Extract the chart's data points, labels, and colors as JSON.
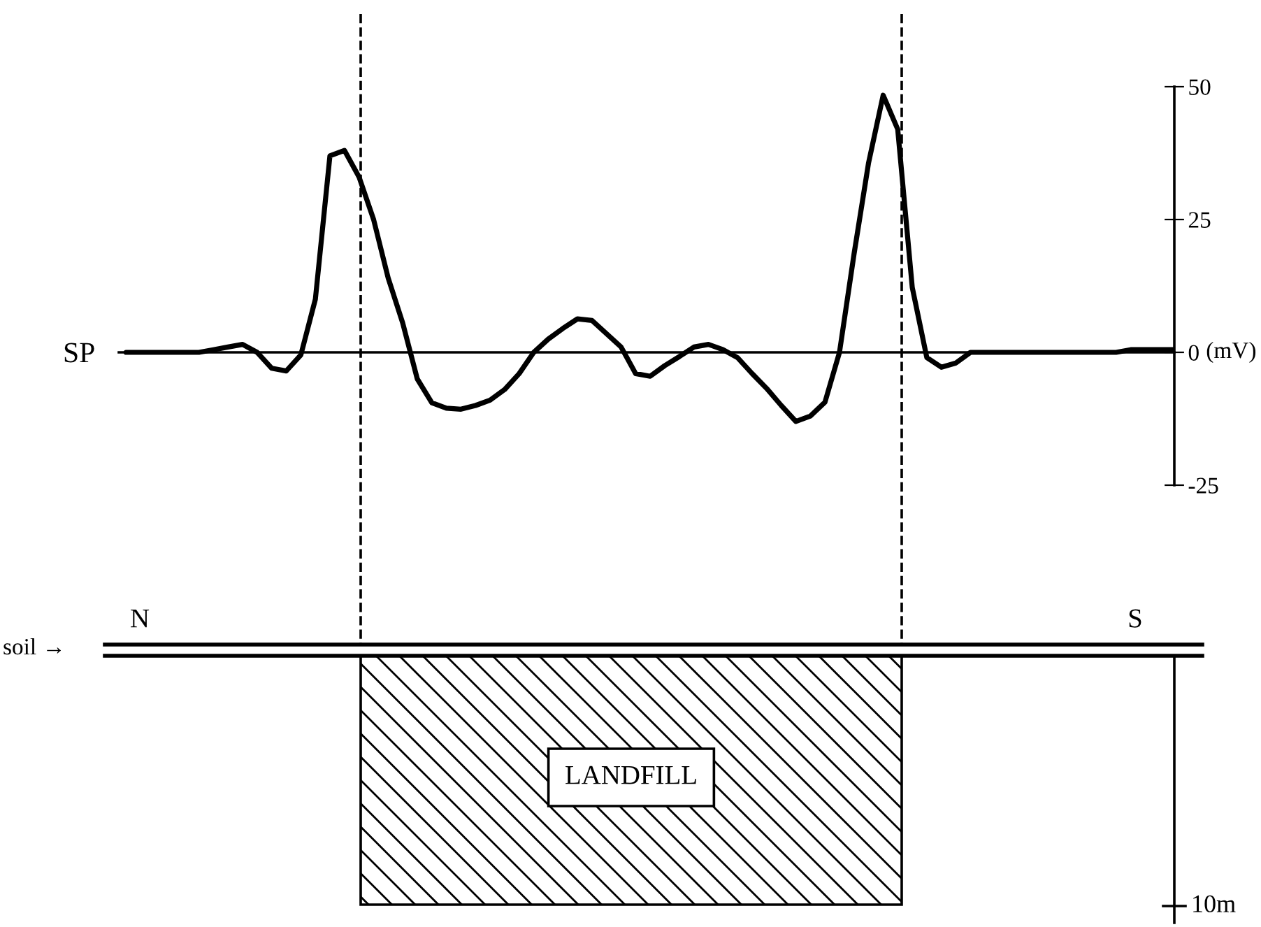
{
  "chart_data": {
    "type": "line",
    "categories": [
      null,
      null,
      null,
      null,
      null,
      null,
      null,
      null,
      null,
      null,
      null,
      null,
      null,
      null,
      null,
      null,
      null,
      null,
      null,
      null,
      null,
      null,
      null,
      null,
      null,
      null,
      null,
      null,
      null,
      null,
      null,
      null,
      null,
      null,
      null,
      null,
      null,
      null,
      null,
      null,
      null,
      null,
      null,
      null,
      null,
      null,
      null,
      null,
      null,
      null,
      null,
      null,
      null,
      null,
      null,
      null,
      null,
      null,
      null,
      null,
      null,
      null,
      null,
      null,
      null,
      null,
      null,
      null,
      null,
      null,
      null,
      null,
      null
    ],
    "series": [
      {
        "color": "#000000",
        "values": [
          0,
          0,
          0,
          0,
          0,
          0,
          0.5,
          1,
          1.5,
          0,
          -3,
          -3.5,
          -0.5,
          10,
          37,
          38,
          33,
          25,
          14,
          5.5,
          -5,
          -9.5,
          -10.5,
          -10.7,
          -10,
          -9,
          -7,
          -4,
          0,
          2.5,
          4.5,
          6.3,
          6,
          3.5,
          1,
          -4,
          -4.5,
          -2.5,
          -0.8,
          1,
          1.5,
          0.5,
          -1,
          -4,
          -6.8,
          -10,
          -13,
          -12,
          -9.4,
          0,
          18.5,
          35.7,
          48.4,
          42,
          12.2,
          -1,
          -2.8,
          -2,
          0,
          0,
          0,
          0,
          0,
          0,
          0,
          0,
          0,
          0,
          0,
          0.5,
          0.5,
          0.5,
          0.5
        ]
      }
    ],
    "ylabel": "(mV)",
    "ylim": [
      -25,
      50
    ],
    "yticks": [
      -25,
      0,
      25,
      50
    ],
    "tick_labels": "y",
    "grid": false,
    "legend": false,
    "marker": "none",
    "line_style": "solid",
    "annotations": [
      "SP",
      "soil →",
      "N",
      "S",
      "LANDFILL",
      "10m"
    ]
  }
}
